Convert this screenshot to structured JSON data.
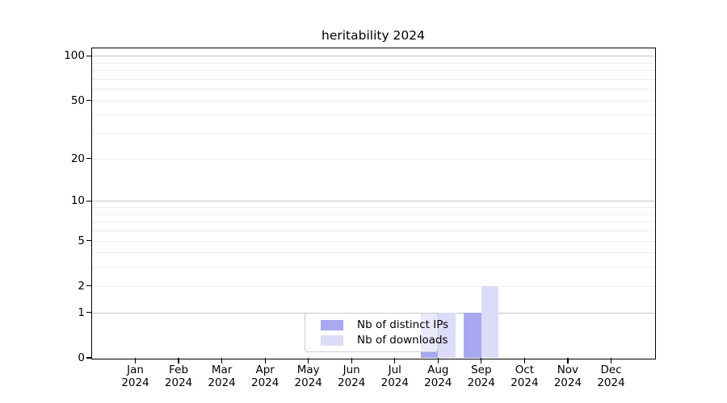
{
  "chart_data": {
    "type": "bar",
    "title": "heritability 2024",
    "categories": [
      "Jan",
      "Feb",
      "Mar",
      "Apr",
      "May",
      "Jun",
      "Jul",
      "Aug",
      "Sep",
      "Oct",
      "Nov",
      "Dec"
    ],
    "category_year": "2024",
    "series": [
      {
        "name": "Nb of distinct IPs",
        "color": "#a8a8f0",
        "values": [
          0,
          0,
          0,
          0,
          0,
          0,
          0,
          1,
          1,
          0,
          0,
          0
        ]
      },
      {
        "name": "Nb of downloads",
        "color": "#dcdcf8",
        "values": [
          0,
          0,
          0,
          0,
          0,
          0,
          0,
          1,
          2,
          0,
          0,
          0
        ]
      }
    ],
    "xlabel": "",
    "ylabel": "",
    "y_scale": "log1p",
    "ylim": [
      0,
      112
    ],
    "y_ticks": [
      0,
      1,
      2,
      5,
      10,
      20,
      50,
      100
    ],
    "y_major_gridlines": [
      1,
      10,
      100
    ],
    "y_minor_gridlines": [
      2,
      3,
      4,
      5,
      6,
      7,
      8,
      9,
      20,
      30,
      40,
      50,
      60,
      70,
      80,
      90
    ],
    "grid": "horizontal",
    "legend_position": "lower center"
  },
  "legend": {
    "items": [
      {
        "label": "Nb of distinct IPs",
        "color": "#a8a8f0"
      },
      {
        "label": "Nb of downloads",
        "color": "#dcdcf8"
      }
    ]
  },
  "colors": {
    "background": "#ffffff",
    "spine": "#000000",
    "major_grid": "#c5c5c5",
    "minor_grid": "#ececec",
    "tick_label": "#000000",
    "legend_border": "#cccccc"
  }
}
